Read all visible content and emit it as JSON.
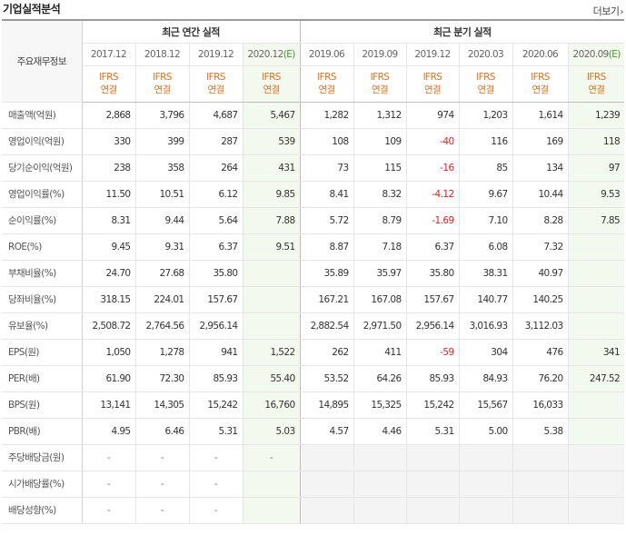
{
  "header": {
    "title": "기업실적분석",
    "more_label": "더보기",
    "more_chevron": "›"
  },
  "table": {
    "row_header_label": "주요재무정보",
    "groups": [
      {
        "label": "최근 연간 실적"
      },
      {
        "label": "최근 분기 실적"
      }
    ],
    "periods": [
      "2017.12",
      "2018.12",
      "2019.12",
      "2020.12(E)",
      "2019.06",
      "2019.09",
      "2019.12",
      "2020.03",
      "2020.06",
      "2020.09(E)"
    ],
    "ifrs_top": "IFRS",
    "ifrs_bottom": "연결",
    "rows": [
      {
        "label": "매출액(억원)",
        "values": [
          "2,868",
          "3,796",
          "4,687",
          "5,467",
          "1,282",
          "1,312",
          "974",
          "1,203",
          "1,614",
          "1,239"
        ]
      },
      {
        "label": "영업이익(억원)",
        "values": [
          "330",
          "399",
          "287",
          "539",
          "108",
          "109",
          "-40",
          "116",
          "169",
          "118"
        ]
      },
      {
        "label": "당기순이익(억원)",
        "values": [
          "238",
          "358",
          "264",
          "431",
          "73",
          "115",
          "-16",
          "85",
          "134",
          "97"
        ]
      },
      {
        "label": "영업이익률(%)",
        "values": [
          "11.50",
          "10.51",
          "6.12",
          "9.85",
          "8.41",
          "8.32",
          "-4.12",
          "9.67",
          "10.44",
          "9.53"
        ]
      },
      {
        "label": "순이익률(%)",
        "values": [
          "8.31",
          "9.44",
          "5.64",
          "7.88",
          "5.72",
          "8.79",
          "-1.69",
          "7.10",
          "8.28",
          "7.85"
        ]
      },
      {
        "label": "ROE(%)",
        "values": [
          "9.45",
          "9.31",
          "6.37",
          "9.51",
          "8.87",
          "7.18",
          "6.37",
          "6.08",
          "7.32",
          ""
        ]
      },
      {
        "label": "부채비율(%)",
        "values": [
          "24.70",
          "27.68",
          "35.80",
          "",
          "35.89",
          "35.97",
          "35.80",
          "38.31",
          "40.97",
          ""
        ]
      },
      {
        "label": "당좌비율(%)",
        "values": [
          "318.15",
          "224.01",
          "157.67",
          "",
          "167.21",
          "167.08",
          "157.67",
          "140.77",
          "140.25",
          ""
        ]
      },
      {
        "label": "유보율(%)",
        "values": [
          "2,508.72",
          "2,764.56",
          "2,956.14",
          "",
          "2,882.54",
          "2,971.50",
          "2,956.14",
          "3,016.93",
          "3,112.03",
          ""
        ]
      },
      {
        "label": "EPS(원)",
        "values": [
          "1,050",
          "1,278",
          "941",
          "1,522",
          "262",
          "411",
          "-59",
          "304",
          "476",
          "341"
        ]
      },
      {
        "label": "PER(배)",
        "values": [
          "61.90",
          "72.30",
          "85.93",
          "55.40",
          "53.52",
          "64.26",
          "85.93",
          "84.93",
          "76.20",
          "247.52"
        ]
      },
      {
        "label": "BPS(원)",
        "values": [
          "13,141",
          "14,305",
          "15,242",
          "16,760",
          "14,895",
          "15,325",
          "15,242",
          "15,567",
          "16,033",
          ""
        ]
      },
      {
        "label": "PBR(배)",
        "values": [
          "4.95",
          "6.46",
          "5.31",
          "5.03",
          "4.57",
          "4.46",
          "5.31",
          "5.00",
          "5.38",
          ""
        ]
      },
      {
        "label": "주당배당금(원)",
        "values": [
          "-",
          "-",
          "-",
          "-",
          "",
          "",
          "",
          "",
          "",
          ""
        ]
      },
      {
        "label": "시가배당률(%)",
        "values": [
          "-",
          "-",
          "-",
          "",
          "",
          "",
          "",
          "",
          "",
          ""
        ]
      },
      {
        "label": "배당성향(%)",
        "values": [
          "-",
          "-",
          "-",
          "",
          "",
          "",
          "",
          "",
          "",
          ""
        ]
      }
    ]
  },
  "colors": {
    "ifrs": "#e0701f",
    "estimate": "#4a9a2a",
    "negative": "#e02020",
    "estimate_bg": "#f3f9ee"
  }
}
